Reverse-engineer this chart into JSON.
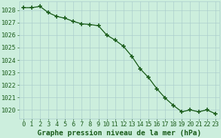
{
  "x": [
    0,
    1,
    2,
    3,
    4,
    5,
    6,
    7,
    8,
    9,
    10,
    11,
    12,
    13,
    14,
    15,
    16,
    17,
    18,
    19,
    20,
    21,
    22,
    23
  ],
  "y": [
    1028.2,
    1028.2,
    1028.3,
    1027.8,
    1027.5,
    1027.35,
    1027.1,
    1026.9,
    1026.85,
    1026.75,
    1026.0,
    1025.6,
    1025.1,
    1024.3,
    1023.3,
    1022.6,
    1021.7,
    1020.95,
    1020.35,
    1019.85,
    1020.0,
    1019.85,
    1020.0,
    1019.7
  ],
  "line_color": "#1a5c1a",
  "marker": "+",
  "marker_size": 4,
  "bg_color": "#cceedd",
  "grid_color": "#aacccc",
  "ylabel_ticks": [
    1020,
    1021,
    1022,
    1023,
    1024,
    1025,
    1026,
    1027,
    1028
  ],
  "ylim": [
    1019.3,
    1028.7
  ],
  "xlim": [
    -0.5,
    23.5
  ],
  "xlabel": "Graphe pression niveau de la mer (hPa)",
  "xlabel_fontsize": 7.5,
  "tick_fontsize": 6.5,
  "label_color": "#1a5c1a",
  "linewidth": 1.0,
  "marker_linewidth": 1.2
}
